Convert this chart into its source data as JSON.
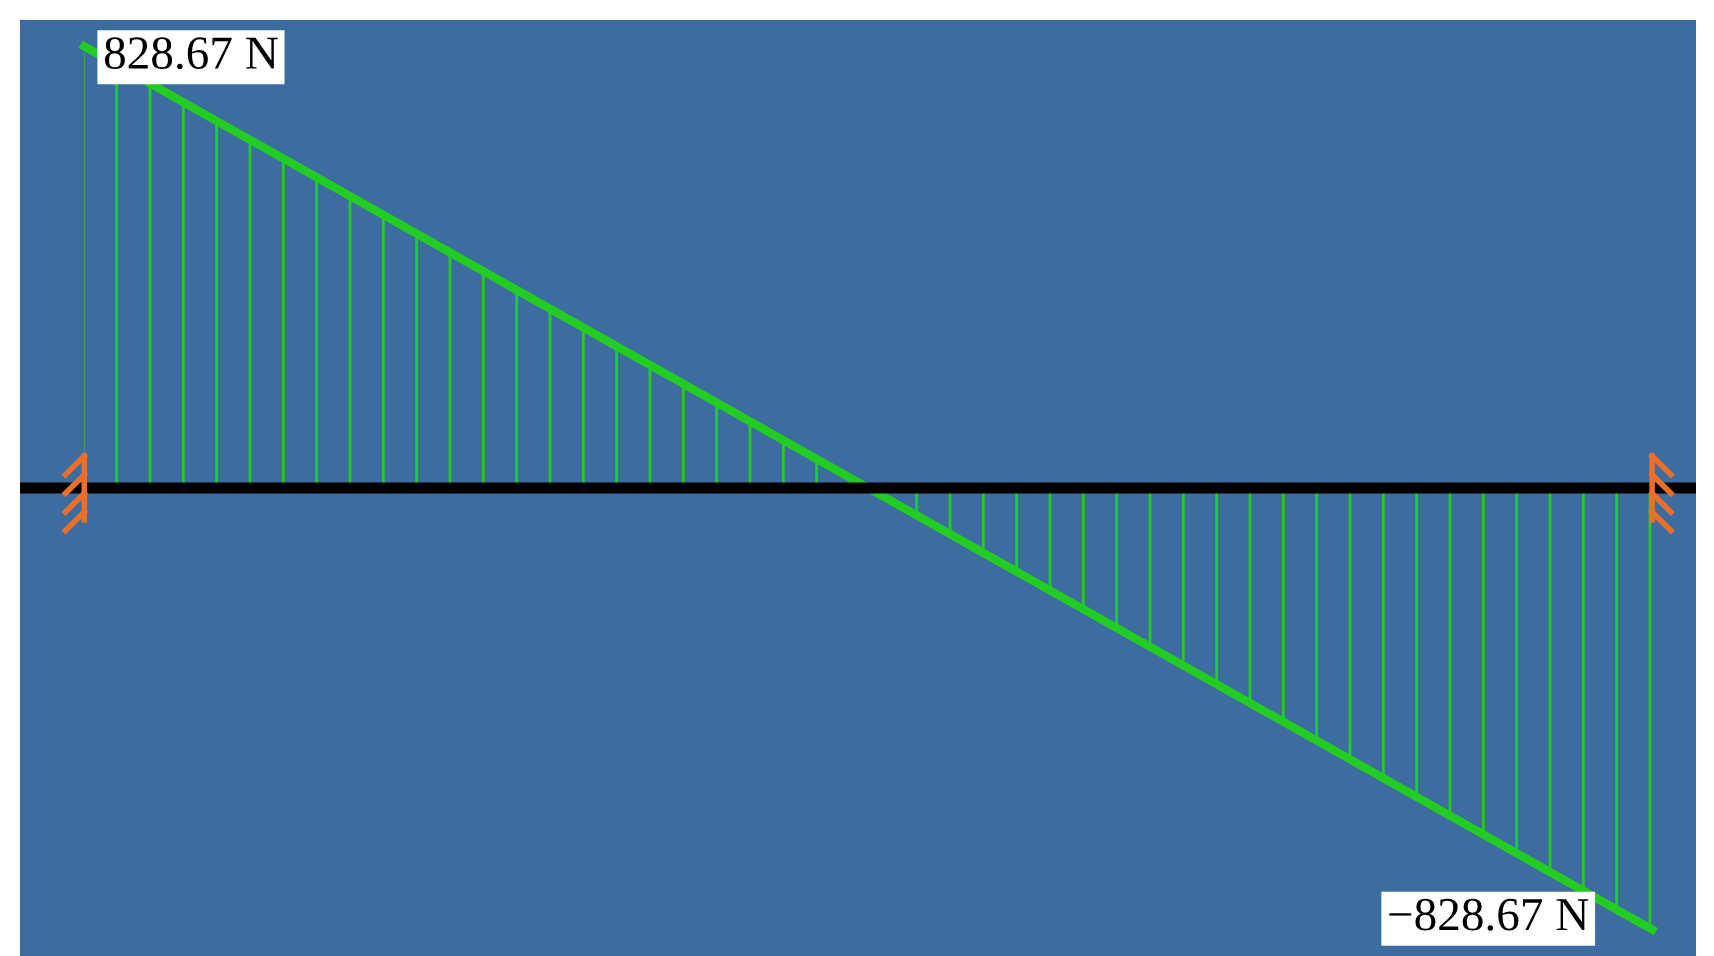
{
  "chart_data": {
    "type": "area",
    "categories": [
      null,
      null
    ],
    "series": [
      {
        "color": "#22cc22",
        "values": [
          828.67,
          -828.67
        ],
        "value_labels": [
          "828.67 N",
          "−828.67 N"
        ]
      }
    ],
    "ref_lines": [
      {
        "axis": "y",
        "value": 0,
        "color": "#000000"
      }
    ],
    "legend": false,
    "tick_labels": false
  }
}
